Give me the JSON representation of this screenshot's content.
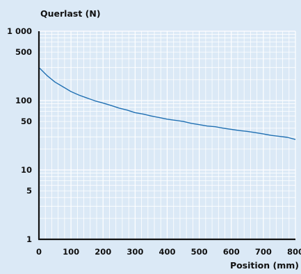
{
  "chart_data": {
    "type": "line",
    "title": "",
    "ylabel": "Querlast (N)",
    "xlabel": "Position (mm)",
    "x_scale": "linear",
    "y_scale": "log",
    "xlim": [
      0,
      800
    ],
    "ylim": [
      1,
      1000
    ],
    "x_ticks": [
      {
        "value": 0,
        "label": "0"
      },
      {
        "value": 100,
        "label": "100"
      },
      {
        "value": 200,
        "label": "200"
      },
      {
        "value": 300,
        "label": "300"
      },
      {
        "value": 400,
        "label": "400"
      },
      {
        "value": 500,
        "label": "500"
      },
      {
        "value": 600,
        "label": "600"
      },
      {
        "value": 700,
        "label": "700"
      },
      {
        "value": 800,
        "label": "800"
      }
    ],
    "y_ticks": [
      {
        "value": 1,
        "label": "1"
      },
      {
        "value": 5,
        "label": "5"
      },
      {
        "value": 10,
        "label": "10"
      },
      {
        "value": 50,
        "label": "50"
      },
      {
        "value": 100,
        "label": "100"
      },
      {
        "value": 500,
        "label": "500"
      },
      {
        "value": 1000,
        "label": "1 000"
      }
    ],
    "grid": true,
    "colors": {
      "background": "#dbe9f6",
      "grid": "#ffffff",
      "axis": "#111111",
      "line": "#1f6fb2"
    },
    "series": [
      {
        "x": [
          0,
          25,
          50,
          75,
          100,
          125,
          150,
          175,
          200,
          225,
          250,
          275,
          300,
          325,
          350,
          375,
          400,
          425,
          450,
          475,
          500,
          525,
          550,
          575,
          600,
          625,
          650,
          675,
          700,
          725,
          750,
          775,
          800
        ],
        "y": [
          300,
          230,
          185,
          158,
          135,
          120,
          109,
          99,
          92,
          85,
          78,
          73,
          67,
          64,
          60,
          57,
          54,
          52,
          50,
          47,
          45,
          43,
          42,
          40,
          38.5,
          37,
          36,
          34.5,
          33,
          31.5,
          30.5,
          29.5,
          27.5
        ]
      }
    ]
  }
}
